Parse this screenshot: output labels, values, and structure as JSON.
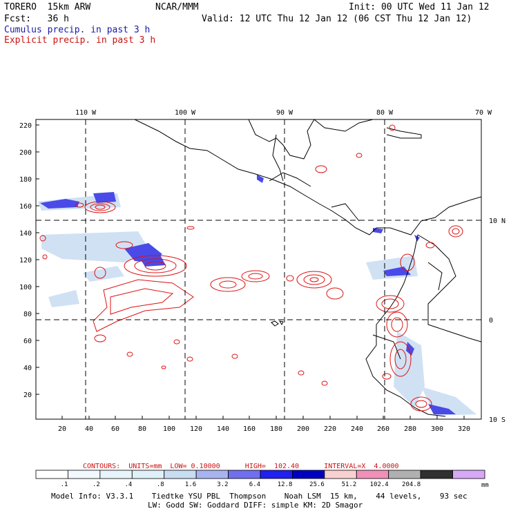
{
  "header": {
    "model": "TORERO  15km ARW",
    "org": "NCAR/MMM",
    "init": "Init: 00 UTC Wed 11 Jan 12",
    "fcst": "Fcst:   36 h",
    "valid": "Valid: 12 UTC Thu 12 Jan 12 (06 CST Thu 12 Jan 12)",
    "line_blue": "Cumulus precip. in past 3 h",
    "line_red": "Explicit precip. in past 3 h"
  },
  "map": {
    "lon_labels": [
      "110 W",
      "100 W",
      "90 W",
      "80 W",
      "70 W"
    ],
    "lat_labels": [
      "10 N",
      "0",
      "10 S"
    ],
    "y_ticks": [
      "220",
      "200",
      "180",
      "160",
      "140",
      "120",
      "100",
      "80",
      "60",
      "40",
      "20"
    ],
    "x_ticks": [
      "20",
      "40",
      "60",
      "80",
      "100",
      "120",
      "140",
      "160",
      "180",
      "200",
      "220",
      "240",
      "260",
      "280",
      "300",
      "320"
    ]
  },
  "legend": {
    "contours_text": "CONTOURS:  UNITS=mm  LOW= 0.10000      HIGH=  102.40      INTERVAL=X  4.0000",
    "units": "mm",
    "bins": [
      {
        "label": ".1",
        "color": "#ffffff"
      },
      {
        "label": ".2",
        "color": "#f2f8ff"
      },
      {
        "label": ".4",
        "color": "#e8f4fb"
      },
      {
        "label": ".8",
        "color": "#dff1f8"
      },
      {
        "label": "1.6",
        "color": "#c8dcf2"
      },
      {
        "label": "3.2",
        "color": "#a8b4f0"
      },
      {
        "label": "6.4",
        "color": "#6f6ff0"
      },
      {
        "label": "12.8",
        "color": "#2020f0"
      },
      {
        "label": "25.6",
        "color": "#0000c0"
      },
      {
        "label": "51.2",
        "color": "#f8d0d0"
      },
      {
        "label": "102.4",
        "color": "#f090b8"
      },
      {
        "label": "204.8",
        "color": "#b0b0b0"
      },
      {
        "label": "",
        "color": "#303030"
      },
      {
        "label": "",
        "color": "#d8a8f8"
      }
    ]
  },
  "model_info": {
    "line1": "Model Info: V3.3.1    Tiedtke YSU PBL  Thompson    Noah LSM  15 km,    44 levels,    93 sec",
    "line2": "LW: Godd SW: Goddard DIFF: simple KM: 2D Smagor"
  },
  "colors": {
    "red_contour": "#dd1111",
    "blue_precip": "#3030e0",
    "light_precip": "#c8dcf2"
  }
}
